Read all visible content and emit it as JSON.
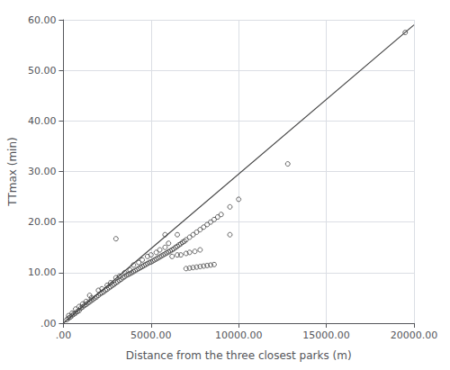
{
  "chart_data": {
    "type": "scatter",
    "xlabel": "Distance from the three closest parks (m)",
    "ylabel": "TTmax (min)",
    "xlim": [
      0,
      20000
    ],
    "ylim": [
      0,
      60
    ],
    "xticks": [
      {
        "value": 0,
        "label": ".00"
      },
      {
        "value": 5000,
        "label": "5000.00"
      },
      {
        "value": 10000,
        "label": "10000.00"
      },
      {
        "value": 15000,
        "label": "15000.00"
      },
      {
        "value": 20000,
        "label": "20000.00"
      }
    ],
    "yticks": [
      {
        "value": 0,
        "label": ".00"
      },
      {
        "value": 10,
        "label": "10.00"
      },
      {
        "value": 20,
        "label": "20.00"
      },
      {
        "value": 30,
        "label": "30.00"
      },
      {
        "value": 40,
        "label": "40.00"
      },
      {
        "value": 50,
        "label": "50.00"
      },
      {
        "value": 60,
        "label": "60.00"
      }
    ],
    "grid": true,
    "series": [
      {
        "type": "scatter",
        "color": "#444444",
        "marker": "open_circle",
        "values": [
          [
            200,
            0.7
          ],
          [
            300,
            1.0
          ],
          [
            400,
            1.2
          ],
          [
            500,
            1.5
          ],
          [
            600,
            1.8
          ],
          [
            700,
            2.0
          ],
          [
            800,
            2.3
          ],
          [
            900,
            2.5
          ],
          [
            1000,
            3.0
          ],
          [
            1100,
            3.2
          ],
          [
            1200,
            3.5
          ],
          [
            1300,
            3.7
          ],
          [
            1400,
            4.0
          ],
          [
            1500,
            4.2
          ],
          [
            1600,
            4.5
          ],
          [
            1700,
            4.7
          ],
          [
            1800,
            5.0
          ],
          [
            1900,
            5.2
          ],
          [
            2000,
            5.5
          ],
          [
            2100,
            5.8
          ],
          [
            2200,
            6.0
          ],
          [
            2300,
            6.2
          ],
          [
            2400,
            6.5
          ],
          [
            2500,
            6.7
          ],
          [
            2600,
            7.0
          ],
          [
            2700,
            7.2
          ],
          [
            2800,
            7.5
          ],
          [
            2900,
            7.7
          ],
          [
            3000,
            8.0
          ],
          [
            3100,
            8.2
          ],
          [
            3200,
            8.5
          ],
          [
            3300,
            8.7
          ],
          [
            3400,
            9.0
          ],
          [
            3500,
            9.2
          ],
          [
            3600,
            9.5
          ],
          [
            3700,
            9.6
          ],
          [
            3800,
            9.8
          ],
          [
            3900,
            10.0
          ],
          [
            4000,
            10.2
          ],
          [
            4100,
            10.4
          ],
          [
            4200,
            10.6
          ],
          [
            4300,
            10.8
          ],
          [
            4400,
            11.0
          ],
          [
            4500,
            11.2
          ],
          [
            4600,
            11.4
          ],
          [
            4700,
            11.6
          ],
          [
            4800,
            11.8
          ],
          [
            4900,
            12.0
          ],
          [
            5000,
            12.1
          ],
          [
            5100,
            12.3
          ],
          [
            5200,
            12.5
          ],
          [
            5300,
            12.7
          ],
          [
            5400,
            12.9
          ],
          [
            5500,
            13.1
          ],
          [
            5600,
            13.3
          ],
          [
            5700,
            13.5
          ],
          [
            5800,
            13.7
          ],
          [
            5900,
            13.9
          ],
          [
            6000,
            14.1
          ],
          [
            6100,
            14.3
          ],
          [
            6200,
            14.5
          ],
          [
            6300,
            14.7
          ],
          [
            6400,
            15.0
          ],
          [
            6500,
            15.2
          ],
          [
            6600,
            15.5
          ],
          [
            6700,
            15.7
          ],
          [
            6800,
            16.0
          ],
          [
            6900,
            16.2
          ],
          [
            7000,
            16.5
          ],
          [
            7200,
            17.0
          ],
          [
            7400,
            17.5
          ],
          [
            7600,
            18.0
          ],
          [
            7800,
            18.5
          ],
          [
            8000,
            19.0
          ],
          [
            8200,
            19.5
          ],
          [
            8400,
            20.0
          ],
          [
            8600,
            20.5
          ],
          [
            8800,
            21.0
          ],
          [
            9000,
            21.5
          ],
          [
            9500,
            23.0
          ],
          [
            10000,
            24.5
          ],
          [
            12800,
            31.5
          ],
          [
            19500,
            57.5
          ],
          [
            1500,
            5.5
          ],
          [
            2000,
            6.5
          ],
          [
            2500,
            7.5
          ],
          [
            3000,
            9.0
          ],
          [
            3500,
            10.0
          ],
          [
            4000,
            11.5
          ],
          [
            4500,
            12.5
          ],
          [
            5000,
            13.5
          ],
          [
            5500,
            14.5
          ],
          [
            6000,
            15.8
          ],
          [
            300,
            1.5
          ],
          [
            500,
            2.0
          ],
          [
            700,
            2.8
          ],
          [
            900,
            3.3
          ],
          [
            1100,
            3.8
          ],
          [
            1300,
            4.3
          ],
          [
            1600,
            5.0
          ],
          [
            2200,
            6.8
          ],
          [
            2700,
            8.0
          ],
          [
            3200,
            9.3
          ],
          [
            3800,
            10.5
          ],
          [
            4300,
            12.0
          ],
          [
            4800,
            13.2
          ],
          [
            5300,
            14.0
          ],
          [
            5800,
            15.0
          ]
        ]
      },
      {
        "type": "scatter",
        "color": "#444444",
        "marker": "open_circle",
        "values": [
          [
            3000,
            16.7
          ],
          [
            5800,
            17.5
          ],
          [
            6500,
            17.5
          ],
          [
            9500,
            17.5
          ],
          [
            6200,
            13.2
          ],
          [
            6500,
            13.5
          ],
          [
            6700,
            13.5
          ],
          [
            7000,
            13.8
          ],
          [
            7200,
            14.0
          ],
          [
            7500,
            14.2
          ],
          [
            7800,
            14.5
          ],
          [
            7000,
            10.8
          ],
          [
            7200,
            10.9
          ],
          [
            7400,
            11.0
          ],
          [
            7600,
            11.1
          ],
          [
            7800,
            11.2
          ],
          [
            8000,
            11.3
          ],
          [
            8200,
            11.4
          ],
          [
            8400,
            11.5
          ],
          [
            8600,
            11.6
          ]
        ]
      },
      {
        "type": "line",
        "color": "#444444",
        "values": [
          [
            0,
            0
          ],
          [
            20000,
            59.0
          ]
        ]
      }
    ]
  }
}
